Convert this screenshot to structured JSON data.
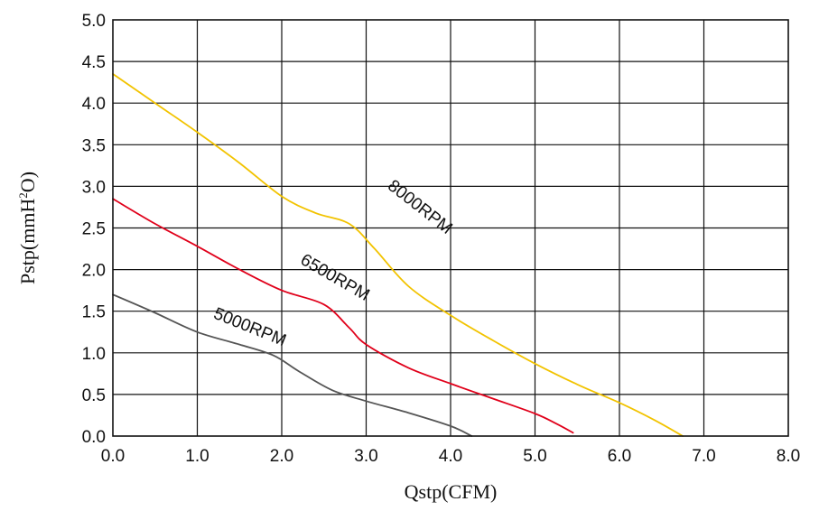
{
  "chart_data": {
    "type": "line",
    "xlabel": "Qstp(CFM)",
    "ylabel_main": "Pstp(mmH",
    "ylabel_sup1": "2",
    "ylabel_mid": "O)",
    "xlim": [
      0,
      8
    ],
    "ylim": [
      0,
      5
    ],
    "x_ticks": [
      0,
      1,
      2,
      3,
      4,
      5,
      6,
      7,
      8
    ],
    "x_tick_labels": [
      "0.0",
      "1.0",
      "2.0",
      "3.0",
      "4.0",
      "5.0",
      "6.0",
      "7.0",
      "8.0"
    ],
    "y_ticks": [
      0,
      0.5,
      1,
      1.5,
      2,
      2.5,
      3,
      3.5,
      4,
      4.5,
      5
    ],
    "y_tick_labels": [
      "0.0",
      "0.5",
      "1.0",
      "1.5",
      "2.0",
      "2.5",
      "3.0",
      "3.5",
      "4.0",
      "4.5",
      "5.0"
    ],
    "grid": true,
    "series": [
      {
        "name": "8000RPM",
        "color": "#f2c300",
        "points": [
          [
            0,
            4.35
          ],
          [
            0.5,
            4.0
          ],
          [
            1.0,
            3.65
          ],
          [
            1.5,
            3.28
          ],
          [
            2.0,
            2.88
          ],
          [
            2.4,
            2.68
          ],
          [
            2.8,
            2.55
          ],
          [
            3.1,
            2.25
          ],
          [
            3.5,
            1.8
          ],
          [
            4.0,
            1.45
          ],
          [
            4.5,
            1.15
          ],
          [
            5.0,
            0.87
          ],
          [
            5.5,
            0.62
          ],
          [
            6.0,
            0.4
          ],
          [
            6.4,
            0.2
          ],
          [
            6.75,
            0.0
          ]
        ]
      },
      {
        "name": "6500RPM",
        "color": "#e0001a",
        "points": [
          [
            0,
            2.85
          ],
          [
            0.5,
            2.55
          ],
          [
            1.0,
            2.28
          ],
          [
            1.5,
            2.0
          ],
          [
            2.0,
            1.75
          ],
          [
            2.5,
            1.58
          ],
          [
            2.8,
            1.3
          ],
          [
            3.0,
            1.1
          ],
          [
            3.5,
            0.82
          ],
          [
            4.0,
            0.63
          ],
          [
            4.5,
            0.45
          ],
          [
            5.0,
            0.27
          ],
          [
            5.25,
            0.15
          ],
          [
            5.45,
            0.04
          ]
        ]
      },
      {
        "name": "5000RPM",
        "color": "#555555",
        "points": [
          [
            0,
            1.7
          ],
          [
            0.5,
            1.48
          ],
          [
            1.0,
            1.25
          ],
          [
            1.5,
            1.1
          ],
          [
            1.9,
            0.97
          ],
          [
            2.2,
            0.78
          ],
          [
            2.6,
            0.55
          ],
          [
            3.0,
            0.42
          ],
          [
            3.5,
            0.28
          ],
          [
            4.0,
            0.12
          ],
          [
            4.25,
            0.0
          ]
        ]
      }
    ],
    "annotations": [
      {
        "text": "8000RPM",
        "series": "8000RPM",
        "x": 3.6,
        "y": 2.7,
        "angle": 38
      },
      {
        "text": "6500RPM",
        "series": "6500RPM",
        "x": 2.6,
        "y": 1.85,
        "angle": 30
      },
      {
        "text": "5000RPM",
        "series": "5000RPM",
        "x": 1.6,
        "y": 1.25,
        "angle": 22
      }
    ]
  }
}
